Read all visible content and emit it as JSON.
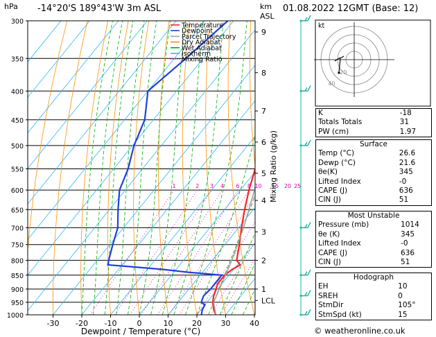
{
  "header": {
    "left_unit": "hPa",
    "location": "-14°20'S  189°43'W  3m  ASL",
    "right_unit_1": "km",
    "right_unit_2": "ASL",
    "datetime": "01.08.2022  12GMT  (Base: 12)"
  },
  "footer": "© weatheronline.co.uk",
  "legend": [
    {
      "name": "Temperature",
      "color": "#ff2020",
      "style": "solid"
    },
    {
      "name": "Dewpoint",
      "color": "#1f3fdf",
      "style": "solid"
    },
    {
      "name": "Parcel Trajectory",
      "color": "#a0a0a0",
      "style": "solid"
    },
    {
      "name": "Dry Adiabat",
      "color": "#ff9000",
      "style": "solid"
    },
    {
      "name": "Wet Adiabat",
      "color": "#00b000",
      "style": "solid"
    },
    {
      "name": "Isotherm",
      "color": "#2ab6ff",
      "style": "solid"
    },
    {
      "name": "Mixing Ratio",
      "color": "#e000a0",
      "style": "dotted"
    }
  ],
  "chart_data": {
    "type": "line",
    "xlabel": "Dewpoint / Temperature (°C)",
    "ylabel": "hPa",
    "ylabel_right": "Mixing Ratio (g/kg)",
    "xlim": [
      -35,
      40
    ],
    "ylim": [
      1000,
      300
    ],
    "x_ticks": [
      -30,
      -20,
      -10,
      0,
      10,
      20,
      30,
      40
    ],
    "pressure_levels": [
      300,
      350,
      400,
      450,
      500,
      550,
      600,
      650,
      700,
      750,
      800,
      850,
      900,
      950,
      1000
    ],
    "km_ticks": [
      {
        "label": "9",
        "p": 314
      },
      {
        "label": "8",
        "p": 371
      },
      {
        "label": "7",
        "p": 434
      },
      {
        "label": "6",
        "p": 493
      },
      {
        "label": "5",
        "p": 560
      },
      {
        "label": "4",
        "p": 626
      },
      {
        "label": "3",
        "p": 712
      },
      {
        "label": "2",
        "p": 800
      },
      {
        "label": "1",
        "p": 900
      },
      {
        "label": "LCL",
        "p": 943
      }
    ],
    "mixing_ratio_labels": [
      "1",
      "2",
      "3",
      "4",
      "6",
      "8",
      "10",
      "15",
      "20",
      "25"
    ],
    "mixing_ratio_values": [
      1,
      2,
      3,
      4,
      6,
      8,
      10,
      15,
      20,
      25
    ],
    "series": [
      {
        "name": "Temperature",
        "points": [
          [
            1000,
            26.6
          ],
          [
            980,
            24.5
          ],
          [
            950,
            22.0
          ],
          [
            925,
            20.5
          ],
          [
            900,
            19.4
          ],
          [
            880,
            18.5
          ],
          [
            850,
            18.5
          ],
          [
            830,
            19.5
          ],
          [
            815,
            21.0
          ],
          [
            800,
            18.5
          ],
          [
            750,
            15.0
          ],
          [
            700,
            11.0
          ],
          [
            650,
            7.0
          ],
          [
            600,
            3.0
          ],
          [
            550,
            -0.8
          ],
          [
            500,
            -5.0
          ],
          [
            450,
            -10.0
          ],
          [
            400,
            -16.0
          ],
          [
            350,
            -23.5
          ],
          [
            300,
            -32.0
          ]
        ]
      },
      {
        "name": "Dewpoint",
        "points": [
          [
            1000,
            21.6
          ],
          [
            980,
            20.5
          ],
          [
            960,
            20.0
          ],
          [
            950,
            18.0
          ],
          [
            925,
            17.0
          ],
          [
            900,
            17.5
          ],
          [
            880,
            17.5
          ],
          [
            850,
            17.5
          ],
          [
            840,
            5.0
          ],
          [
            830,
            -5.0
          ],
          [
            820,
            -18.0
          ],
          [
            815,
            -25.0
          ],
          [
            800,
            -26.0
          ],
          [
            750,
            -29.0
          ],
          [
            700,
            -32.0
          ],
          [
            650,
            -37.0
          ],
          [
            600,
            -42.0
          ],
          [
            550,
            -45.0
          ],
          [
            500,
            -49.5
          ],
          [
            450,
            -53.0
          ],
          [
            400,
            -60.0
          ],
          [
            350,
            -56.0
          ],
          [
            300,
            -52.0
          ]
        ]
      },
      {
        "name": "Parcel Trajectory",
        "points": [
          [
            1000,
            26.6
          ],
          [
            950,
            22.3
          ],
          [
            900,
            20.6
          ],
          [
            850,
            18.8
          ],
          [
            800,
            16.8
          ],
          [
            750,
            14.4
          ],
          [
            700,
            11.7
          ],
          [
            650,
            8.5
          ],
          [
            600,
            4.9
          ],
          [
            550,
            0.7
          ],
          [
            500,
            -4.2
          ],
          [
            450,
            -9.8
          ],
          [
            400,
            -16.2
          ],
          [
            350,
            -24.0
          ],
          [
            300,
            -32.5
          ]
        ]
      }
    ]
  },
  "wind_barbs": [
    {
      "p": 300,
      "dir": 80,
      "spd": 25
    },
    {
      "p": 400,
      "dir": 90,
      "spd": 20
    },
    {
      "p": 500,
      "dir": 95,
      "spd": 20
    },
    {
      "p": 700,
      "dir": 100,
      "spd": 15
    },
    {
      "p": 850,
      "dir": 105,
      "spd": 15
    },
    {
      "p": 925,
      "dir": 105,
      "spd": 15
    },
    {
      "p": 1000,
      "dir": 105,
      "spd": 15
    }
  ],
  "hodograph": {
    "label": "kt",
    "ring_labels": [
      "20",
      "40"
    ],
    "points": [
      [
        -15,
        5
      ],
      [
        -18,
        3
      ],
      [
        -22,
        2
      ],
      [
        -28,
        -2
      ]
    ]
  },
  "indices": {
    "rows": [
      {
        "label": "K",
        "value": "-18"
      },
      {
        "label": "Totals Totals",
        "value": "31"
      },
      {
        "label": "PW (cm)",
        "value": "1.97"
      }
    ]
  },
  "surface": {
    "title": "Surface",
    "rows": [
      {
        "label": "Temp (°C)",
        "value": "26.6"
      },
      {
        "label": "Dewp (°C)",
        "value": "21.6"
      },
      {
        "label": "θe(K)",
        "value": "345"
      },
      {
        "label": "Lifted Index",
        "value": "-0"
      },
      {
        "label": "CAPE (J)",
        "value": "636"
      },
      {
        "label": "CIN (J)",
        "value": "51"
      }
    ]
  },
  "most_unstable": {
    "title": "Most Unstable",
    "rows": [
      {
        "label": "Pressure (mb)",
        "value": "1014"
      },
      {
        "label": "θe (K)",
        "value": "345"
      },
      {
        "label": "Lifted Index",
        "value": "-0"
      },
      {
        "label": "CAPE (J)",
        "value": "636"
      },
      {
        "label": "CIN (J)",
        "value": "51"
      }
    ]
  },
  "hodograph_table": {
    "title": "Hodograph",
    "rows": [
      {
        "label": "EH",
        "value": "10"
      },
      {
        "label": "SREH",
        "value": "0"
      },
      {
        "label": "StmDir",
        "value": "105°"
      },
      {
        "label": "StmSpd (kt)",
        "value": "15"
      }
    ]
  }
}
